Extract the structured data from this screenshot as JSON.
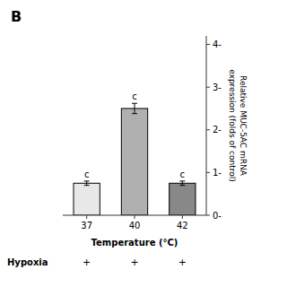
{
  "chart_data": {
    "type": "bar",
    "title": "B",
    "categories": [
      "37",
      "40",
      "42"
    ],
    "values": [
      0.75,
      2.5,
      0.75
    ],
    "errors": [
      0.05,
      0.12,
      0.05
    ],
    "colors": [
      "#e8e8e8",
      "#b0b0b0",
      "#888888"
    ],
    "xlabel": "Temperature (°C)",
    "ylabel": "Relative MUC-5AC mRNA\nexpression (folds of control)",
    "annotations": {
      "bars": [
        "c",
        "c",
        "c"
      ],
      "rows": [
        {
          "label": "Hypoxia",
          "marks": [
            "+",
            "+",
            "+"
          ]
        }
      ]
    },
    "ylim": [
      0,
      4.2
    ],
    "yticks": [
      {
        "value": 0,
        "label": "0-"
      },
      {
        "value": 1,
        "label": "1-"
      },
      {
        "value": 2,
        "label": "2-"
      },
      {
        "value": 3,
        "label": "3-"
      },
      {
        "value": 4,
        "label": "4-"
      }
    ],
    "grid": false
  }
}
